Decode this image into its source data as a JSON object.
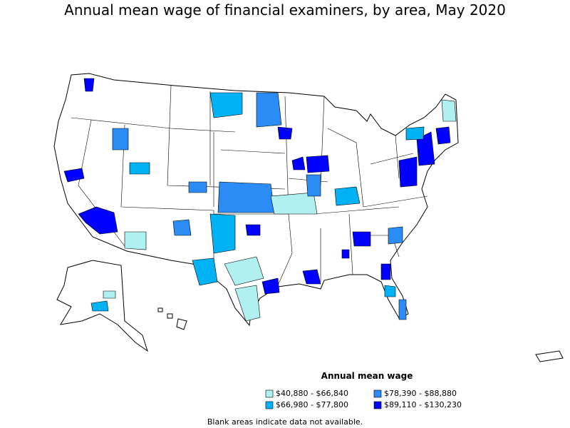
{
  "title": "Annual mean wage of financial examiners, by area, May 2020",
  "legend": {
    "title": "Annual mean wage",
    "items": [
      {
        "label": "$40,880 - $66,840",
        "color": "#b0f0f0"
      },
      {
        "label": "$66,980 - $77,800",
        "color": "#00b2f4"
      },
      {
        "label": "$78,390 - $88,880",
        "color": "#2a8cf4"
      },
      {
        "label": "$89,110 - $130,230",
        "color": "#0000ff"
      }
    ]
  },
  "note": "Blank areas indicate data not available."
}
